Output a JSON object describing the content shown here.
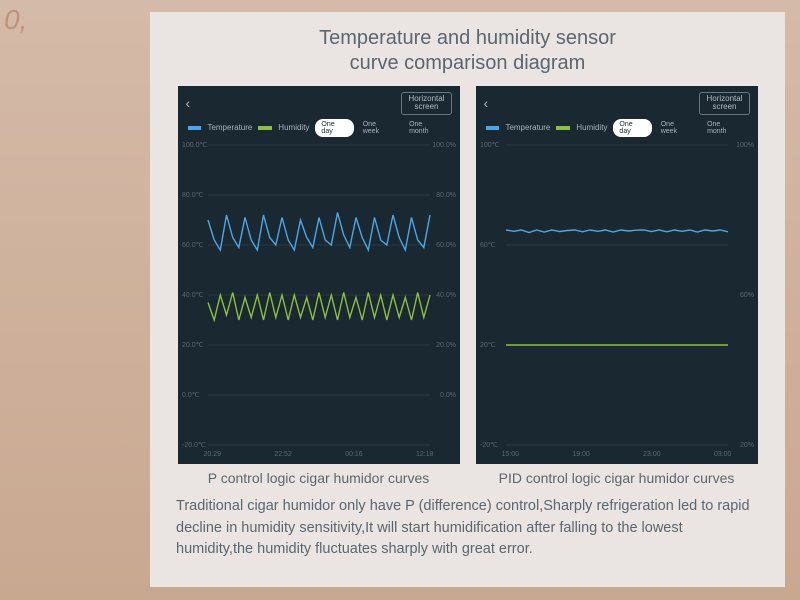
{
  "title_line1": "Temperature and humidity sensor",
  "title_line2": "curve comparison diagram",
  "colors": {
    "card_bg": "#eae5e2",
    "panel_bg": "#1a2832",
    "grid": "#2a3842",
    "text_muted": "#5a6670",
    "axis_text": "#5a6872",
    "temp": "#4aa8e8",
    "humidity": "#8fbf3f",
    "pill_active_bg": "#ffffff"
  },
  "legend": {
    "temp_label": "Temperature",
    "hum_label": "Humidity"
  },
  "hscreen_label": "Horizontal\nscreen",
  "pills": {
    "one_day": "One day",
    "one_week": "One week",
    "one_month": "One month"
  },
  "left_chart": {
    "caption": "P control logic cigar humidor curves",
    "type": "line",
    "y_left": {
      "min": -20,
      "max": 100,
      "ticks": [
        "100.0℃",
        "80.0℃",
        "60.0℃",
        "40.0℃",
        "20.0℃",
        "0.0℃",
        "-20.0℃"
      ]
    },
    "y_right": {
      "min": 0,
      "max": 100,
      "ticks": [
        "100.0%",
        "80.0%",
        "60.0%",
        "40.0%",
        "20.0%",
        "0.0%"
      ]
    },
    "x_labels": [
      "20:29",
      "22:52",
      "00:16",
      "12:18"
    ],
    "temp_series": [
      70,
      62,
      58,
      72,
      63,
      59,
      71,
      62,
      58,
      72,
      63,
      60,
      71,
      62,
      58,
      70,
      63,
      59,
      71,
      62,
      60,
      73,
      64,
      59,
      71,
      63,
      58,
      71,
      62,
      60,
      72,
      63,
      58,
      71,
      62,
      59,
      72
    ],
    "hum_series": [
      37,
      30,
      40,
      32,
      41,
      30,
      39,
      31,
      40,
      30,
      41,
      31,
      40,
      30,
      40,
      31,
      39,
      30,
      41,
      31,
      40,
      30,
      41,
      31,
      39,
      30,
      41,
      31,
      40,
      30,
      40,
      31,
      39,
      30,
      41,
      31,
      40
    ],
    "temp_color": "#4aa8e8",
    "hum_color": "#8fbf3f",
    "background_color": "#1a2832",
    "line_width": 1.4
  },
  "right_chart": {
    "caption": "PID control logic cigar humidor curves",
    "type": "line",
    "y_left": {
      "min": -20,
      "max": 100,
      "ticks": [
        "100℃",
        "60℃",
        "20℃",
        "-20℃"
      ]
    },
    "y_right": {
      "min": 0,
      "max": 100,
      "ticks": [
        "100%",
        "60%",
        "20%"
      ]
    },
    "x_labels": [
      "15:00",
      "19:00",
      "23:00",
      "03:00"
    ],
    "temp_series": [
      66,
      65.5,
      66,
      65,
      66,
      65.2,
      66,
      65.4,
      65.8,
      66,
      65.3,
      66,
      65.5,
      66,
      65.2,
      66,
      65.6,
      65.9,
      66,
      65.4,
      66,
      65.3,
      66,
      65.5,
      66,
      65.2,
      66,
      65.6,
      66,
      65.3
    ],
    "hum_series": [
      20,
      20,
      20,
      20,
      20,
      20,
      20,
      20,
      20,
      20,
      20,
      20,
      20,
      20,
      20,
      20,
      20,
      20,
      20,
      20,
      20,
      20,
      20,
      20,
      20,
      20,
      20,
      20,
      20,
      20
    ],
    "temp_color": "#4aa8e8",
    "hum_color": "#8fbf3f",
    "background_color": "#1a2832",
    "line_width": 1.4
  },
  "description": "Traditional cigar humidor only have P (difference) control,Sharply refrigeration led to rapid decline in humidity sensitivity,It will start humidification after falling to the lowest humidity,the humidity fluctuates sharply with great error."
}
